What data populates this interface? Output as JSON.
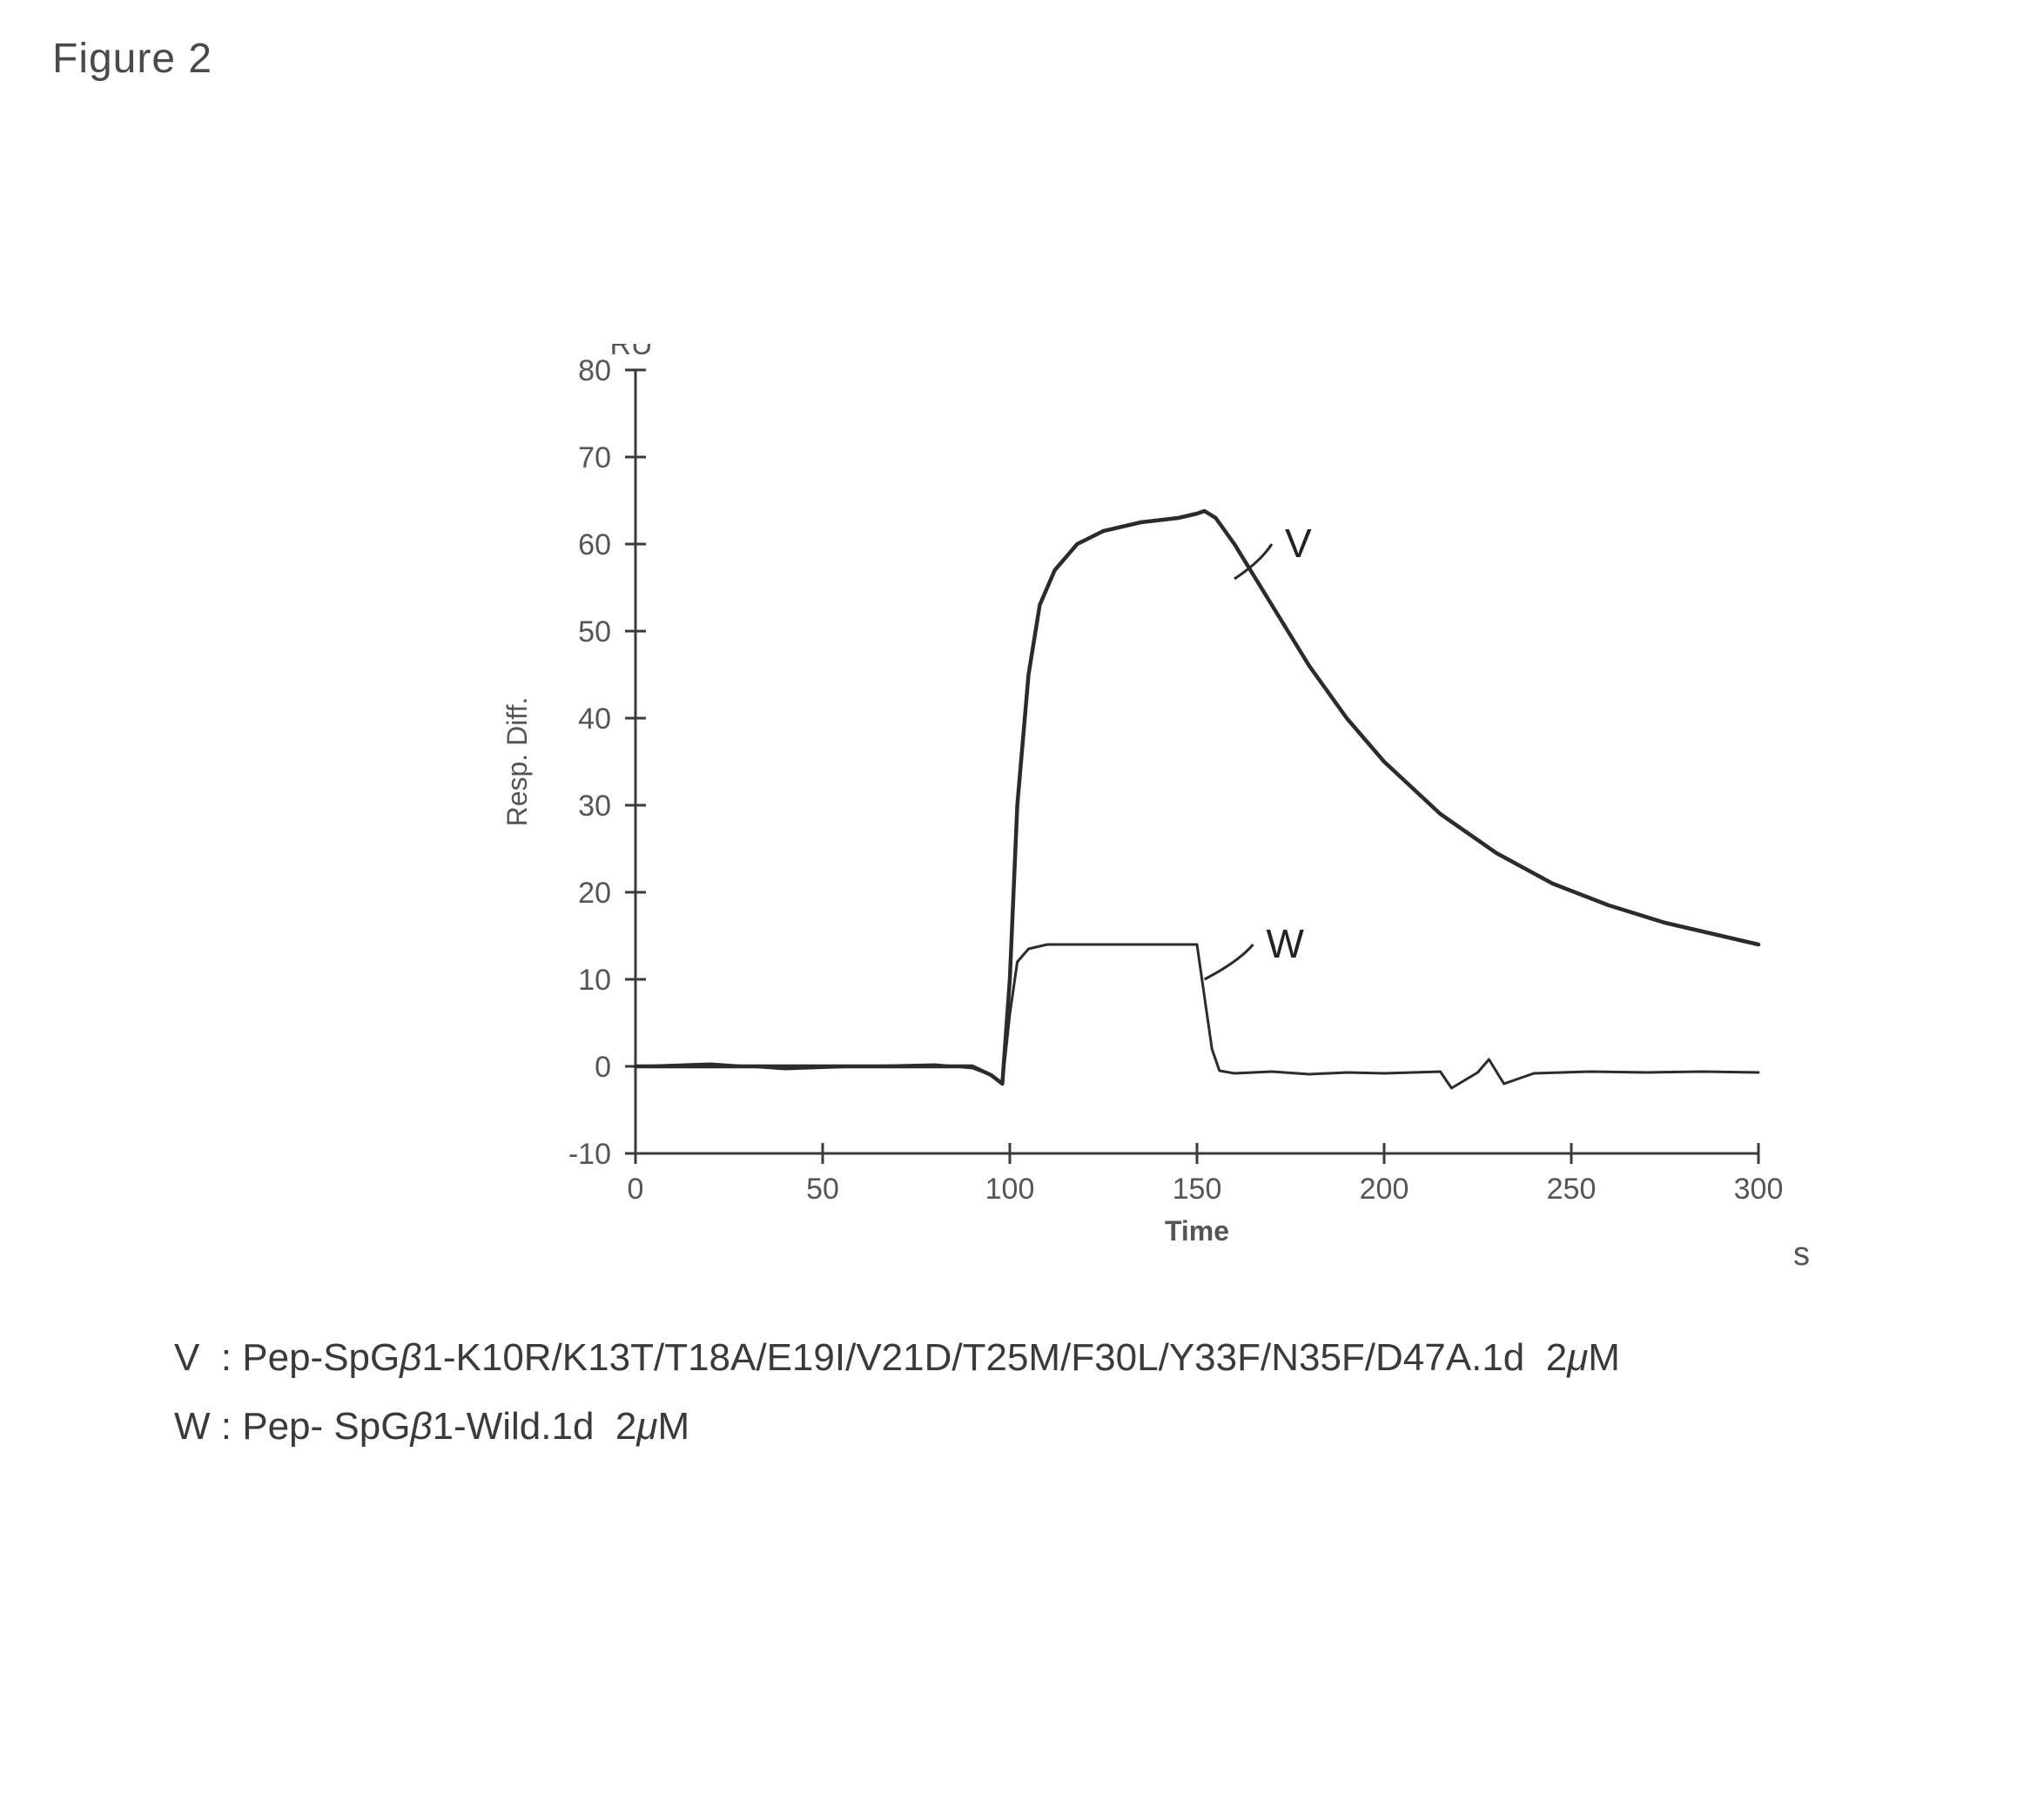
{
  "figure_label": "Figure 2",
  "chart": {
    "type": "line",
    "y_unit_label": "RU",
    "y_axis_label": "Resp. Diff.",
    "x_axis_label": "Time",
    "x_unit_label": "s",
    "xlim": [
      0,
      300
    ],
    "ylim": [
      -10,
      80
    ],
    "xtick_step": 50,
    "ytick_step": 10,
    "xticks": [
      0,
      50,
      100,
      150,
      200,
      250,
      300
    ],
    "yticks": [
      -10,
      0,
      10,
      20,
      30,
      40,
      50,
      60,
      70,
      80
    ],
    "line_color": "#2b2b2b",
    "axis_color": "#3b3b3b",
    "tick_color": "#3b3b3b",
    "text_color": "#555555",
    "background_color": "#ffffff",
    "tick_fontsize": 34,
    "axis_label_fontsize": 32,
    "line_width_v": 4.5,
    "line_width_w": 3,
    "annotations": {
      "V": {
        "text": "V",
        "arrow_from": [
          170,
          60
        ],
        "arrow_to": [
          160,
          56
        ]
      },
      "W": {
        "text": "W",
        "arrow_from": [
          165,
          14
        ],
        "arrow_to": [
          152,
          10
        ]
      }
    },
    "series": {
      "V": {
        "label": "V",
        "x": [
          0,
          20,
          40,
          60,
          80,
          90,
          95,
          98,
          100,
          102,
          105,
          108,
          112,
          118,
          125,
          135,
          145,
          150,
          152,
          155,
          160,
          170,
          180,
          190,
          200,
          215,
          230,
          245,
          260,
          275,
          290,
          300
        ],
        "y": [
          0,
          0,
          0,
          0,
          0,
          0,
          -1,
          -2,
          10,
          30,
          45,
          53,
          57,
          60,
          61.5,
          62.5,
          63,
          63.5,
          63.8,
          63,
          60,
          53,
          46,
          40,
          35,
          29,
          24.5,
          21,
          18.5,
          16.5,
          15,
          14
        ]
      },
      "W": {
        "label": "W",
        "x": [
          0,
          20,
          40,
          60,
          80,
          90,
          95,
          98,
          100,
          102,
          105,
          110,
          120,
          130,
          140,
          148,
          150,
          152,
          154,
          156,
          160,
          170,
          180,
          190,
          200,
          215,
          218,
          225,
          228,
          232,
          240,
          255,
          270,
          285,
          300
        ],
        "y": [
          0,
          0.3,
          -0.3,
          0,
          0.2,
          -0.2,
          -1,
          -2,
          6,
          12,
          13.5,
          14,
          14,
          14,
          14,
          14,
          14,
          8,
          2,
          -0.5,
          -0.8,
          -0.6,
          -0.9,
          -0.7,
          -0.8,
          -0.6,
          -2.5,
          -0.7,
          0.8,
          -2.0,
          -0.8,
          -0.6,
          -0.7,
          -0.6,
          -0.7
        ]
      }
    }
  },
  "legend": {
    "V": "Pep-SpGβ1-K10R/K13T/T18A/E19I/V21D/T25M/F30L/Y33F/N35F/D47A.1d  2μM",
    "W": "Pep- SpGβ1-Wild.1d  2μM"
  }
}
